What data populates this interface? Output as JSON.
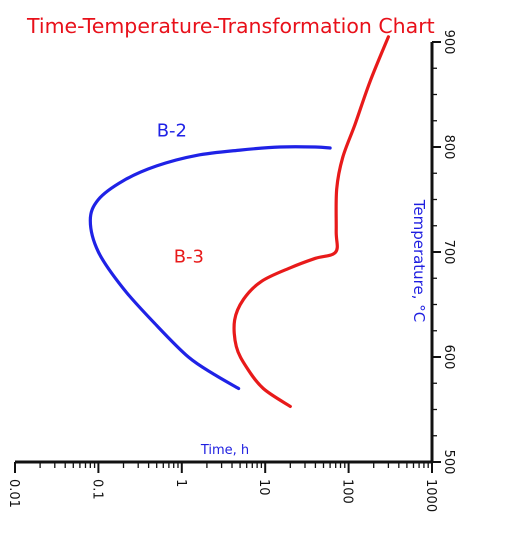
{
  "chart_data": {
    "type": "line",
    "title": "Time-Temperature-Transformation Chart",
    "xlabel": "Time, h",
    "ylabel": "Temperature, °C",
    "x_scale": "log",
    "xlim": [
      0.01,
      1000
    ],
    "ylim": [
      500,
      900
    ],
    "x_ticks": [
      0.01,
      0.1,
      1,
      10,
      100,
      1000
    ],
    "x_tick_labels": [
      "0.01",
      "0.1",
      "1",
      "10",
      "100",
      "1000"
    ],
    "y_ticks": [
      500,
      600,
      700,
      800,
      900
    ],
    "y_tick_labels": [
      "500",
      "600",
      "700",
      "800",
      "900"
    ],
    "grid": false,
    "colors": {
      "title": "#e8101a",
      "axis_label": "#1f1fe0",
      "axes": "#111111"
    },
    "series": [
      {
        "name": "B-2",
        "color": "#1f22e6",
        "x": [
          4.8,
          2.5,
          1.2,
          0.5,
          0.2,
          0.1,
          0.08,
          0.1,
          0.2,
          0.5,
          1.5,
          5,
          15,
          40,
          60
        ],
        "y": [
          570,
          583,
          600,
          630,
          665,
          700,
          730,
          750,
          768,
          782,
          792,
          797,
          800,
          800,
          799
        ]
      },
      {
        "name": "B-3",
        "color": "#e81a1a",
        "x": [
          20,
          9.5,
          6,
          4.5,
          4.3,
          5.5,
          9,
          20,
          40,
          70,
          71,
          72,
          85,
          120,
          180,
          300
        ],
        "y": [
          553,
          570,
          590,
          610,
          635,
          655,
          672,
          685,
          694,
          700,
          720,
          760,
          790,
          822,
          862,
          905
        ]
      }
    ],
    "annotations": [
      {
        "text": "B-2",
        "x": 0.5,
        "y": 810,
        "color": "#1f22e6"
      },
      {
        "text": "B-3",
        "x": 0.8,
        "y": 690,
        "color": "#e81a1a"
      }
    ]
  }
}
